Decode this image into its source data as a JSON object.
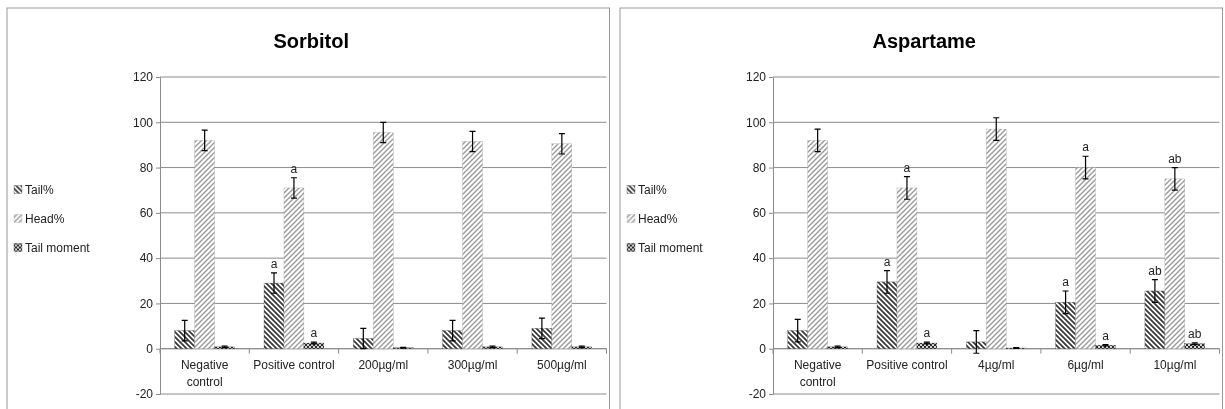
{
  "chart_data": [
    {
      "type": "bar",
      "title": "Sorbitol",
      "categories": [
        "Negative control",
        "Positive control",
        "200µg/ml",
        "300µg/ml",
        "500µg/ml"
      ],
      "series": [
        {
          "name": "Tail%",
          "color": "#3a3a3a",
          "values": [
            8,
            29,
            4.5,
            8,
            9
          ],
          "errors": [
            4.5,
            4.5,
            4.5,
            4.5,
            4.5
          ],
          "value_labels": [
            null,
            "a",
            null,
            null,
            null
          ]
        },
        {
          "name": "Head%",
          "color": "#9a9a9a",
          "values": [
            92,
            71,
            95.5,
            91.5,
            90.5
          ],
          "errors": [
            4.5,
            4.5,
            4.5,
            4.5,
            4.5
          ],
          "value_labels": [
            null,
            "a",
            null,
            null,
            null
          ]
        },
        {
          "name": "Tail moment",
          "color": "#2a2a2a",
          "values": [
            0.8,
            2.5,
            0.4,
            0.8,
            0.8
          ],
          "errors": [
            0.3,
            0.4,
            0.2,
            0.3,
            0.3
          ],
          "value_labels": [
            null,
            "a",
            null,
            null,
            null
          ]
        }
      ],
      "ylim": [
        -20,
        120
      ],
      "yticks": [
        -20,
        0,
        20,
        40,
        60,
        80,
        100,
        120
      ],
      "grid": "y",
      "legend": "left"
    },
    {
      "type": "bar",
      "title": "Aspartame",
      "categories": [
        "Negative control",
        "Positive control",
        "4µg/ml",
        "6µg/ml",
        "10µg/ml"
      ],
      "series": [
        {
          "name": "Tail%",
          "color": "#3a3a3a",
          "values": [
            8,
            29.5,
            3,
            20.5,
            25.5
          ],
          "errors": [
            5,
            5,
            5,
            5,
            5
          ],
          "value_labels": [
            null,
            "a",
            null,
            "a",
            "ab"
          ]
        },
        {
          "name": "Head%",
          "color": "#9a9a9a",
          "values": [
            92,
            71,
            97,
            80,
            75
          ],
          "errors": [
            5,
            5,
            5,
            5,
            5
          ],
          "value_labels": [
            null,
            "a",
            null,
            "a",
            "ab"
          ]
        },
        {
          "name": "Tail moment",
          "color": "#2a2a2a",
          "values": [
            0.8,
            2.5,
            0.3,
            1.5,
            2.2
          ],
          "errors": [
            0.3,
            0.4,
            0.2,
            0.3,
            0.4
          ],
          "value_labels": [
            null,
            "a",
            null,
            "a",
            "ab"
          ]
        }
      ],
      "ylim": [
        -20,
        120
      ],
      "yticks": [
        -20,
        0,
        20,
        40,
        60,
        80,
        100,
        120
      ],
      "grid": "y",
      "legend": "left"
    }
  ]
}
